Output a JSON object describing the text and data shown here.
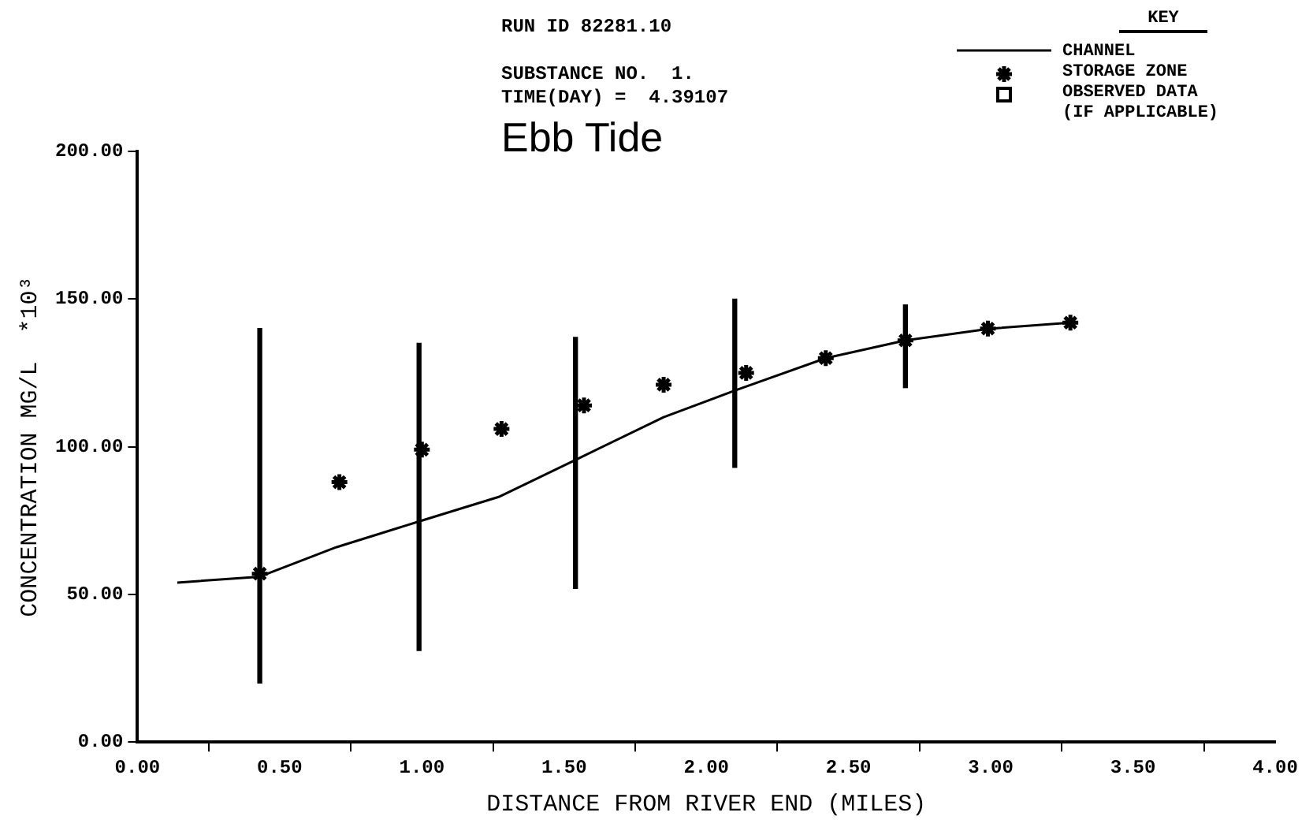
{
  "chart_data": {
    "type": "scatter",
    "title": "Ebb Tide",
    "annotations": [
      "RUN ID 82281.10",
      "SUBSTANCE NO.  1.",
      "TIME(DAY) =  4.39107"
    ],
    "legend_title": "KEY",
    "legend": "top right",
    "grid": false,
    "xlabel": "DISTANCE FROM RIVER END (MILES)",
    "ylabel": "CONCENTRATION MG/L  *10³",
    "xlim": [
      0,
      4
    ],
    "xticks": [
      {
        "value": 0,
        "label": "0.00"
      },
      {
        "value": 0.5,
        "label": "0.50"
      },
      {
        "value": 1,
        "label": "1.00"
      },
      {
        "value": 1.5,
        "label": "1.50"
      },
      {
        "value": 2,
        "label": "2.00"
      },
      {
        "value": 2.5,
        "label": "2.50"
      },
      {
        "value": 3,
        "label": "3.00"
      },
      {
        "value": 3.5,
        "label": "3.50"
      },
      {
        "value": 4,
        "label": "4.00"
      }
    ],
    "ylim": [
      0,
      200
    ],
    "yticks": [
      {
        "value": 0,
        "label": "0.00"
      },
      {
        "value": 50,
        "label": "50.00"
      },
      {
        "value": 100,
        "label": "100.00"
      },
      {
        "value": 150,
        "label": "150.00"
      },
      {
        "value": 200,
        "label": "200.00"
      }
    ],
    "series": [
      {
        "name": "CHANNEL",
        "type": "line",
        "marker": "none",
        "line_style": "solid",
        "color": "#000000",
        "x": [
          0.14,
          0.43,
          0.7,
          1.0,
          1.27,
          1.55,
          1.85,
          2.1,
          2.42,
          2.7,
          3.0,
          3.28
        ],
        "values": [
          54,
          56,
          66,
          75,
          83,
          96,
          110,
          119,
          130,
          136,
          140,
          142
        ]
      },
      {
        "name": "STORAGE ZONE",
        "marker": "cross",
        "color": "#000000",
        "x": [
          0.43,
          0.71,
          1.0,
          1.28,
          1.57,
          1.85,
          2.14,
          2.42,
          2.7,
          2.99,
          3.28
        ],
        "values": [
          57,
          88,
          99,
          106,
          114,
          121,
          125,
          130,
          136,
          140,
          142
        ]
      },
      {
        "type": "bar",
        "color": "#000000",
        "x": [
          0.43,
          0.99,
          1.54,
          2.1,
          2.7
        ],
        "base": [
          20,
          31,
          52,
          93,
          120
        ],
        "values": [
          120,
          104,
          85,
          57,
          28
        ]
      },
      {
        "name": "OBSERVED DATA\n(IF APPLICABLE)",
        "marker": "square",
        "color": "#000000"
      }
    ]
  }
}
